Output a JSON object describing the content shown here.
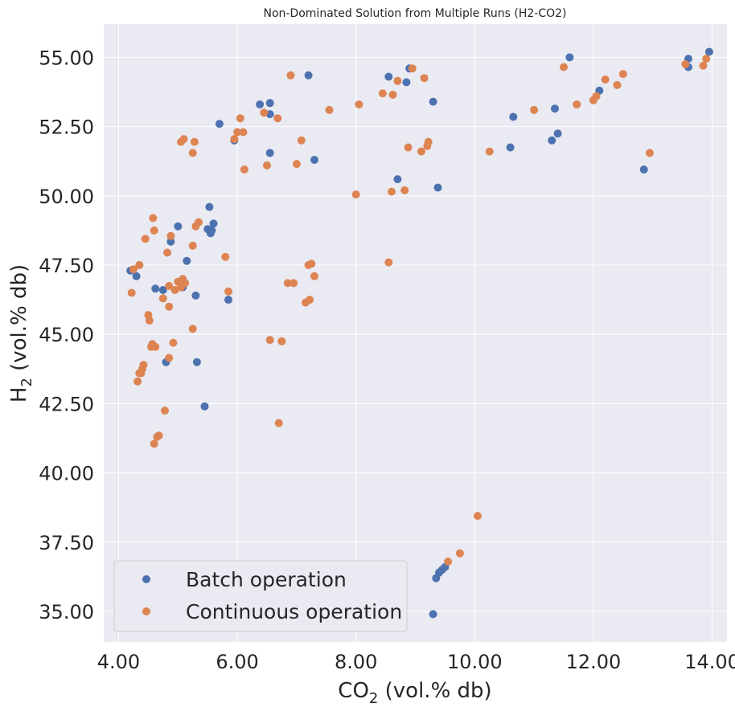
{
  "chart_data": {
    "type": "scatter",
    "title": "Non-Dominated Solution from Multiple Runs (H2-CO2)",
    "xlabel": {
      "main": "CO",
      "sub": "2",
      "rest": " (vol.% db)"
    },
    "ylabel": {
      "main": "H",
      "sub": "2",
      "rest": " (vol.% db)"
    },
    "xlim": [
      3.75,
      14.25
    ],
    "ylim": [
      33.9,
      56.2
    ],
    "xticks": [
      4,
      6,
      8,
      10,
      12,
      14
    ],
    "xtick_labels": [
      "4.00",
      "6.00",
      "8.00",
      "10.00",
      "12.00",
      "14.00"
    ],
    "yticks": [
      35,
      37.5,
      40,
      42.5,
      45,
      47.5,
      50,
      52.5,
      55
    ],
    "ytick_labels": [
      "35.00",
      "37.50",
      "40.00",
      "42.50",
      "45.00",
      "47.50",
      "50.00",
      "52.50",
      "55.00"
    ],
    "grid": true,
    "legend_position": "lower-left",
    "series": [
      {
        "name": "Batch operation",
        "color": "#4c72b0",
        "points": [
          [
            4.2,
            47.3
          ],
          [
            4.3,
            47.1
          ],
          [
            4.35,
            47.5
          ],
          [
            4.62,
            46.65
          ],
          [
            4.75,
            46.6
          ],
          [
            4.8,
            44.0
          ],
          [
            4.88,
            48.35
          ],
          [
            5.0,
            48.9
          ],
          [
            5.08,
            46.7
          ],
          [
            5.15,
            47.65
          ],
          [
            5.3,
            46.4
          ],
          [
            5.32,
            44.0
          ],
          [
            5.45,
            42.4
          ],
          [
            5.5,
            48.8
          ],
          [
            5.53,
            49.6
          ],
          [
            5.55,
            48.65
          ],
          [
            5.57,
            48.75
          ],
          [
            5.6,
            49.0
          ],
          [
            5.7,
            52.6
          ],
          [
            5.85,
            46.25
          ],
          [
            5.95,
            52.0
          ],
          [
            6.38,
            53.3
          ],
          [
            6.55,
            53.35
          ],
          [
            6.55,
            52.95
          ],
          [
            6.55,
            51.55
          ],
          [
            7.2,
            54.35
          ],
          [
            7.3,
            51.3
          ],
          [
            8.55,
            54.3
          ],
          [
            8.9,
            54.6
          ],
          [
            8.7,
            50.6
          ],
          [
            8.85,
            54.1
          ],
          [
            9.3,
            53.4
          ],
          [
            9.38,
            50.3
          ],
          [
            9.3,
            34.9
          ],
          [
            9.35,
            36.2
          ],
          [
            9.4,
            36.4
          ],
          [
            9.45,
            36.5
          ],
          [
            9.5,
            36.6
          ],
          [
            10.6,
            51.75
          ],
          [
            10.65,
            52.85
          ],
          [
            11.3,
            52.0
          ],
          [
            11.35,
            53.15
          ],
          [
            11.4,
            52.25
          ],
          [
            11.6,
            55.0
          ],
          [
            12.1,
            53.8
          ],
          [
            12.85,
            50.95
          ],
          [
            13.6,
            54.95
          ],
          [
            13.6,
            54.65
          ],
          [
            13.95,
            55.2
          ]
        ]
      },
      {
        "name": "Continuous operation",
        "color": "#dd8452",
        "points": [
          [
            4.25,
            47.35
          ],
          [
            4.22,
            46.5
          ],
          [
            4.35,
            47.5
          ],
          [
            4.32,
            43.3
          ],
          [
            4.35,
            43.6
          ],
          [
            4.38,
            43.6
          ],
          [
            4.4,
            43.75
          ],
          [
            4.42,
            43.9
          ],
          [
            4.45,
            48.45
          ],
          [
            4.5,
            45.7
          ],
          [
            4.52,
            45.5
          ],
          [
            4.55,
            44.55
          ],
          [
            4.57,
            44.65
          ],
          [
            4.58,
            49.2
          ],
          [
            4.6,
            48.75
          ],
          [
            4.6,
            41.05
          ],
          [
            4.62,
            44.55
          ],
          [
            4.65,
            41.3
          ],
          [
            4.68,
            41.35
          ],
          [
            4.75,
            46.3
          ],
          [
            4.78,
            42.25
          ],
          [
            4.82,
            47.95
          ],
          [
            4.85,
            46.0
          ],
          [
            4.85,
            46.75
          ],
          [
            4.85,
            44.15
          ],
          [
            4.88,
            48.55
          ],
          [
            4.92,
            44.7
          ],
          [
            4.95,
            46.6
          ],
          [
            5.0,
            46.9
          ],
          [
            5.05,
            46.7
          ],
          [
            5.05,
            51.95
          ],
          [
            5.08,
            47.0
          ],
          [
            5.08,
            46.85
          ],
          [
            5.1,
            52.05
          ],
          [
            5.12,
            46.85
          ],
          [
            5.25,
            48.2
          ],
          [
            5.25,
            45.2
          ],
          [
            5.25,
            51.55
          ],
          [
            5.28,
            51.95
          ],
          [
            5.3,
            48.9
          ],
          [
            5.35,
            49.05
          ],
          [
            5.8,
            47.8
          ],
          [
            5.85,
            46.55
          ],
          [
            5.95,
            52.05
          ],
          [
            6.0,
            52.3
          ],
          [
            6.05,
            52.8
          ],
          [
            6.1,
            52.3
          ],
          [
            6.12,
            50.95
          ],
          [
            6.45,
            53.0
          ],
          [
            6.5,
            51.1
          ],
          [
            6.55,
            44.8
          ],
          [
            6.68,
            52.8
          ],
          [
            6.7,
            41.8
          ],
          [
            6.75,
            44.75
          ],
          [
            6.85,
            46.85
          ],
          [
            6.9,
            54.35
          ],
          [
            6.95,
            46.85
          ],
          [
            7.0,
            51.15
          ],
          [
            7.08,
            52.0
          ],
          [
            7.15,
            46.15
          ],
          [
            7.2,
            47.5
          ],
          [
            7.22,
            46.25
          ],
          [
            7.25,
            47.55
          ],
          [
            7.3,
            47.1
          ],
          [
            7.55,
            53.1
          ],
          [
            8.0,
            50.05
          ],
          [
            8.05,
            53.3
          ],
          [
            8.45,
            53.7
          ],
          [
            8.55,
            47.6
          ],
          [
            8.6,
            50.15
          ],
          [
            8.62,
            53.65
          ],
          [
            8.7,
            54.15
          ],
          [
            8.82,
            50.2
          ],
          [
            8.88,
            51.75
          ],
          [
            8.95,
            54.6
          ],
          [
            9.1,
            51.6
          ],
          [
            9.15,
            54.25
          ],
          [
            9.2,
            51.8
          ],
          [
            9.22,
            51.95
          ],
          [
            9.55,
            36.8
          ],
          [
            9.75,
            37.1
          ],
          [
            10.05,
            38.45
          ],
          [
            10.25,
            51.6
          ],
          [
            11.0,
            53.1
          ],
          [
            11.5,
            54.65
          ],
          [
            11.72,
            53.3
          ],
          [
            12.0,
            53.45
          ],
          [
            12.05,
            53.6
          ],
          [
            12.2,
            54.2
          ],
          [
            12.4,
            54.0
          ],
          [
            12.5,
            54.4
          ],
          [
            12.95,
            51.55
          ],
          [
            13.55,
            54.75
          ],
          [
            13.85,
            54.7
          ],
          [
            13.9,
            54.95
          ]
        ]
      }
    ]
  }
}
